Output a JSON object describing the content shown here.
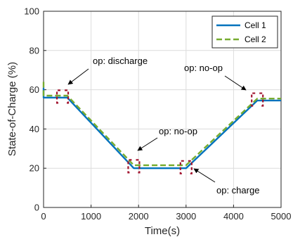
{
  "chart_data": {
    "type": "line",
    "xlabel": "Time(s)",
    "ylabel": "State-of-Charge (%)",
    "xlim": [
      0,
      5000
    ],
    "ylim": [
      0,
      100
    ],
    "xticks": [
      0,
      1000,
      2000,
      3000,
      4000,
      5000
    ],
    "yticks": [
      0,
      20,
      40,
      60,
      80,
      100
    ],
    "grid": true,
    "legend_position": "top-right",
    "series": [
      {
        "name": "Cell 1",
        "color": "#0072BD",
        "style": "solid",
        "x": [
          0,
          0,
          500,
          1900,
          3000,
          4500,
          5000
        ],
        "y": [
          61,
          56,
          56,
          20,
          20,
          54.5,
          54.5
        ]
      },
      {
        "name": "Cell 2",
        "color": "#77AC30",
        "style": "dashed",
        "x": [
          0,
          0,
          500,
          1900,
          3000,
          4500,
          5000
        ],
        "y": [
          64,
          57,
          57,
          21.5,
          21.5,
          55.5,
          55.5
        ]
      }
    ],
    "annotations": [
      {
        "text": "op: discharge",
        "x": 400,
        "y": 56.5
      },
      {
        "text": "op: no-op",
        "x": 1900,
        "y": 21
      },
      {
        "text": "op: charge",
        "x": 3000,
        "y": 20.5
      },
      {
        "text": "op: no-op",
        "x": 4500,
        "y": 55
      }
    ],
    "markers": {
      "color": "#A2142F",
      "style": "dashed-brackets"
    }
  }
}
